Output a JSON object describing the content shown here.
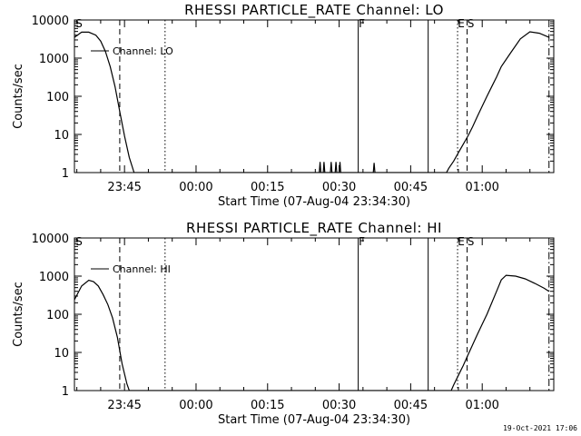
{
  "chart_data": [
    {
      "type": "line",
      "title": "RHESSI PARTICLE_RATE Channel: LO",
      "xlabel": "Start Time (07-Aug-04 23:34:30)",
      "ylabel": "Counts/sec",
      "yscale": "log",
      "ylim": [
        1,
        10000
      ],
      "yticks": [
        "1",
        "10",
        "100",
        "1000",
        "10000"
      ],
      "xlim": [
        "23:34:30",
        "01:15:00"
      ],
      "xticks": [
        "23:45",
        "00:00",
        "00:15",
        "00:30",
        "00:45",
        "01:00"
      ],
      "grid": false,
      "legend_position": "top-left",
      "series": [
        {
          "name": "Channel: LO",
          "x": [
            "23:34:30",
            "23:36:00",
            "23:37:30",
            "23:39:00",
            "23:40:00",
            "23:41:00",
            "23:42:00",
            "23:43:00",
            "23:44:00",
            "23:45:00",
            "23:46:00",
            "23:47:00",
            "23:48:00",
            "00:25:50",
            "00:26:00",
            "00:26:10",
            "00:26:40",
            "00:26:50",
            "00:27:00",
            "00:28:10",
            "00:28:20",
            "00:28:30",
            "00:29:10",
            "00:29:20",
            "00:29:30",
            "00:30:00",
            "00:30:10",
            "00:30:20",
            "00:37:10",
            "00:37:20",
            "00:37:30",
            "00:52:30",
            "00:53:00",
            "00:54:00",
            "00:55:00",
            "00:56:00",
            "00:57:00",
            "00:58:00",
            "00:59:00",
            "01:00:00",
            "01:01:00",
            "01:02:00",
            "01:03:00",
            "01:04:00",
            "01:06:00",
            "01:08:00",
            "01:10:00",
            "01:12:00",
            "01:14:00"
          ],
          "y": [
            3500,
            4800,
            4800,
            4000,
            2800,
            1500,
            600,
            180,
            40,
            9,
            2.5,
            1,
            1,
            1,
            1.9,
            1,
            1,
            1.9,
            1,
            1,
            1.9,
            1,
            1,
            1.9,
            1,
            1,
            1.9,
            1,
            1,
            1.8,
            1,
            1,
            1.3,
            2,
            3.3,
            5.5,
            9,
            16,
            30,
            55,
            100,
            180,
            320,
            600,
            1400,
            3200,
            4900,
            4500,
            3500
          ]
        }
      ],
      "markers": [
        {
          "label": "S",
          "time": "23:34:30",
          "style": "dashed"
        },
        {
          "time": "23:44:00",
          "style": "dashed"
        },
        {
          "time": "23:53:30",
          "style": "dotted"
        },
        {
          "label": "F",
          "time": "00:34:00",
          "style": "solid"
        },
        {
          "time": "00:48:40",
          "style": "solid"
        },
        {
          "label": "E",
          "time": "00:54:50",
          "style": "dotted"
        },
        {
          "label": "S",
          "time": "00:56:50",
          "style": "dashed"
        },
        {
          "time": "01:14:00",
          "style": "dash-dot"
        }
      ]
    },
    {
      "type": "line",
      "title": "RHESSI PARTICLE_RATE Channel: HI",
      "xlabel": "Start Time (07-Aug-04 23:34:30)",
      "ylabel": "Counts/sec",
      "yscale": "log",
      "ylim": [
        1,
        10000
      ],
      "yticks": [
        "1",
        "10",
        "100",
        "1000",
        "10000"
      ],
      "xlim": [
        "23:34:30",
        "01:15:00"
      ],
      "xticks": [
        "23:45",
        "00:00",
        "00:15",
        "00:30",
        "00:45",
        "01:00"
      ],
      "grid": false,
      "legend_position": "top-left",
      "series": [
        {
          "name": "Channel: HI",
          "x": [
            "23:34:30",
            "23:36:00",
            "23:37:30",
            "23:38:30",
            "23:39:30",
            "23:40:30",
            "23:41:30",
            "23:42:30",
            "23:43:30",
            "23:44:30",
            "23:45:30",
            "23:46:00",
            "00:53:30",
            "00:54:00",
            "00:55:00",
            "00:56:00",
            "00:57:00",
            "00:58:00",
            "00:59:00",
            "01:00:00",
            "01:01:00",
            "01:02:00",
            "01:03:00",
            "01:04:00",
            "01:05:00",
            "01:07:00",
            "01:09:00",
            "01:11:00",
            "01:13:00",
            "01:14:00"
          ],
          "y": [
            240,
            550,
            780,
            720,
            550,
            330,
            180,
            80,
            25,
            5,
            1.5,
            1,
            1,
            1.4,
            2.5,
            4.5,
            8.5,
            16,
            30,
            55,
            100,
            200,
            400,
            800,
            1050,
            1000,
            850,
            650,
            480,
            400
          ]
        }
      ],
      "markers": [
        {
          "label": "S",
          "time": "23:34:30",
          "style": "dashed"
        },
        {
          "time": "23:44:00",
          "style": "dashed"
        },
        {
          "time": "23:53:30",
          "style": "dotted"
        },
        {
          "label": "F",
          "time": "00:34:00",
          "style": "solid"
        },
        {
          "time": "00:48:40",
          "style": "solid"
        },
        {
          "label": "E",
          "time": "00:54:50",
          "style": "dotted"
        },
        {
          "label": "S",
          "time": "00:56:50",
          "style": "dashed"
        },
        {
          "time": "01:14:00",
          "style": "dash-dot"
        }
      ]
    }
  ],
  "timestamp": "19-Oct-2021 17:06",
  "colors": {
    "background": "#ffffff",
    "foreground": "#000000"
  }
}
